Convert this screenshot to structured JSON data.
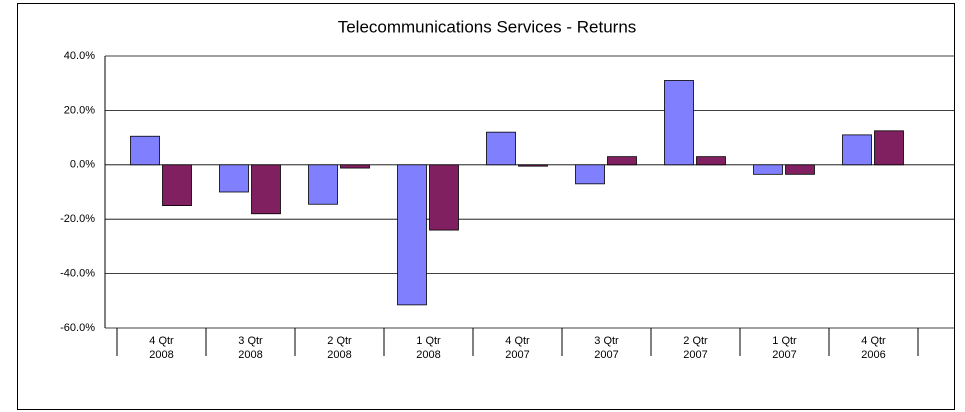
{
  "chart_data": {
    "type": "bar",
    "title": "Telecommunications Services  -  Returns",
    "categories": [
      [
        "4 Qtr",
        "2008"
      ],
      [
        "3 Qtr",
        "2008"
      ],
      [
        "2 Qtr",
        "2008"
      ],
      [
        "1 Qtr",
        "2008"
      ],
      [
        "4 Qtr",
        "2007"
      ],
      [
        "3 Qtr",
        "2007"
      ],
      [
        "2 Qtr",
        "2007"
      ],
      [
        "1 Qtr",
        "2007"
      ],
      [
        "4 Qtr",
        "2006"
      ]
    ],
    "series": [
      {
        "color": "#8080ff",
        "values": [
          10.5,
          -10,
          -14.5,
          -51.5,
          12,
          -7,
          31,
          -3.5,
          11
        ]
      },
      {
        "color": "#802060",
        "values": [
          -15,
          -18,
          -1.2,
          -24,
          -0.5,
          3,
          3,
          -3.5,
          12.5
        ]
      }
    ],
    "ylim": [
      -60,
      40
    ],
    "yticks": [
      {
        "value": -60,
        "label": "-60.0%"
      },
      {
        "value": -40,
        "label": "-40.0%"
      },
      {
        "value": -20,
        "label": "-20.0%"
      },
      {
        "value": 0,
        "label": "0.0%"
      },
      {
        "value": 20,
        "label": "20.0%"
      },
      {
        "value": 40,
        "label": "40.0%"
      }
    ],
    "grid": true
  }
}
